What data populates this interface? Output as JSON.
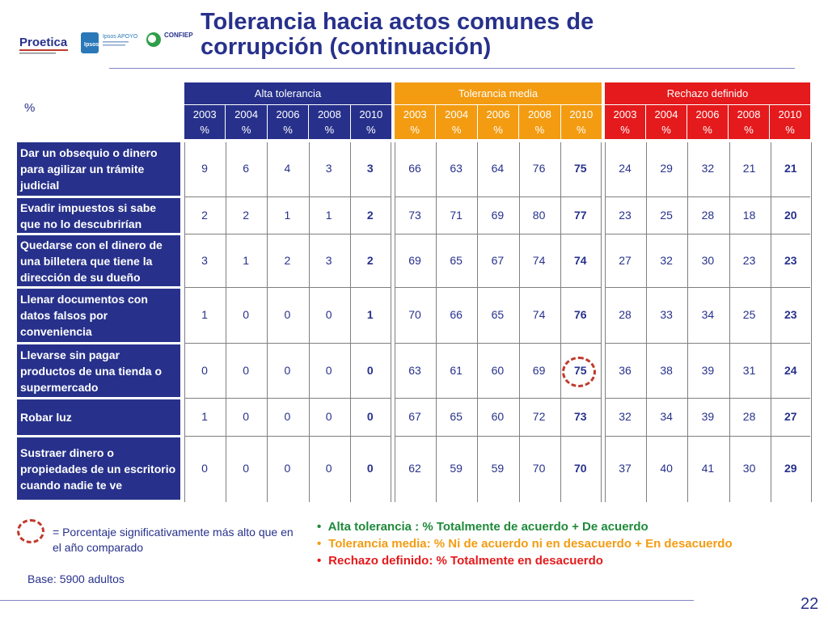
{
  "header": {
    "title_line1": "Tolerancia hacia actos comunes de",
    "title_line2": "corrupción (continuación)",
    "logos": [
      "Proetica",
      "Ipsos APOYO",
      "CONFIEP"
    ]
  },
  "table": {
    "unit_label": "%",
    "groups": [
      {
        "label": "Alta tolerancia",
        "color": "#27318b"
      },
      {
        "label": "Tolerancia media",
        "color": "#f39c12"
      },
      {
        "label": "Rechazo definido",
        "color": "#e41a1c"
      }
    ],
    "years": [
      "2003",
      "2004",
      "2006",
      "2008",
      "2010"
    ],
    "pct": "%",
    "rows": [
      {
        "label": "Dar un obsequio o dinero para agilizar un  trámite judicial",
        "alta": [
          "9",
          "6",
          "4",
          "3",
          "3"
        ],
        "media": [
          "66",
          "63",
          "64",
          "76",
          "75"
        ],
        "rechazo": [
          "24",
          "29",
          "32",
          "21",
          "21"
        ]
      },
      {
        "label": "Evadir impuestos si sabe que no lo descubrirían",
        "alta": [
          "2",
          "2",
          "1",
          "1",
          "2"
        ],
        "media": [
          "73",
          "71",
          "69",
          "80",
          "77"
        ],
        "rechazo": [
          "23",
          "25",
          "28",
          "18",
          "20"
        ]
      },
      {
        "label": "Quedarse con el dinero de una billetera que tiene la dirección de su dueño",
        "alta": [
          "3",
          "1",
          "2",
          "3",
          "2"
        ],
        "media": [
          "69",
          "65",
          "67",
          "74",
          "74"
        ],
        "rechazo": [
          "27",
          "32",
          "30",
          "23",
          "23"
        ]
      },
      {
        "label": "Llenar documentos con datos falsos por conveniencia",
        "alta": [
          "1",
          "0",
          "0",
          "0",
          "1"
        ],
        "media": [
          "70",
          "66",
          "65",
          "74",
          "76"
        ],
        "rechazo": [
          "28",
          "33",
          "34",
          "25",
          "23"
        ]
      },
      {
        "label": "Llevarse sin pagar productos de una tienda o supermercado",
        "alta": [
          "0",
          "0",
          "0",
          "0",
          "0"
        ],
        "media": [
          "63",
          "61",
          "60",
          "69",
          "75"
        ],
        "rechazo": [
          "36",
          "38",
          "39",
          "31",
          "24"
        ]
      },
      {
        "label": "Robar luz",
        "alta": [
          "1",
          "0",
          "0",
          "0",
          "0"
        ],
        "media": [
          "67",
          "65",
          "60",
          "72",
          "73"
        ],
        "rechazo": [
          "32",
          "34",
          "39",
          "28",
          "27"
        ]
      },
      {
        "label": "Sustraer dinero o propiedades de un escritorio cuando nadie te ve",
        "alta": [
          "0",
          "0",
          "0",
          "0",
          "0"
        ],
        "media": [
          "62",
          "59",
          "59",
          "70",
          "70"
        ],
        "rechazo": [
          "37",
          "40",
          "41",
          "30",
          "29"
        ]
      }
    ]
  },
  "legend": {
    "significance": "= Porcentaje significativamente más alto que en el año comparado",
    "definitions": [
      {
        "text": "Alta tolerancia : % Totalmente de acuerdo + De acuerdo",
        "color": "#1f8a3a"
      },
      {
        "text": "Tolerancia media: % Ni de acuerdo ni en desacuerdo + En desacuerdo",
        "color": "#f39c12"
      },
      {
        "text": "Rechazo definido: % Totalmente en desacuerdo",
        "color": "#e41a1c"
      }
    ],
    "base": "Base: 5900 adultos"
  },
  "page_number": "22"
}
